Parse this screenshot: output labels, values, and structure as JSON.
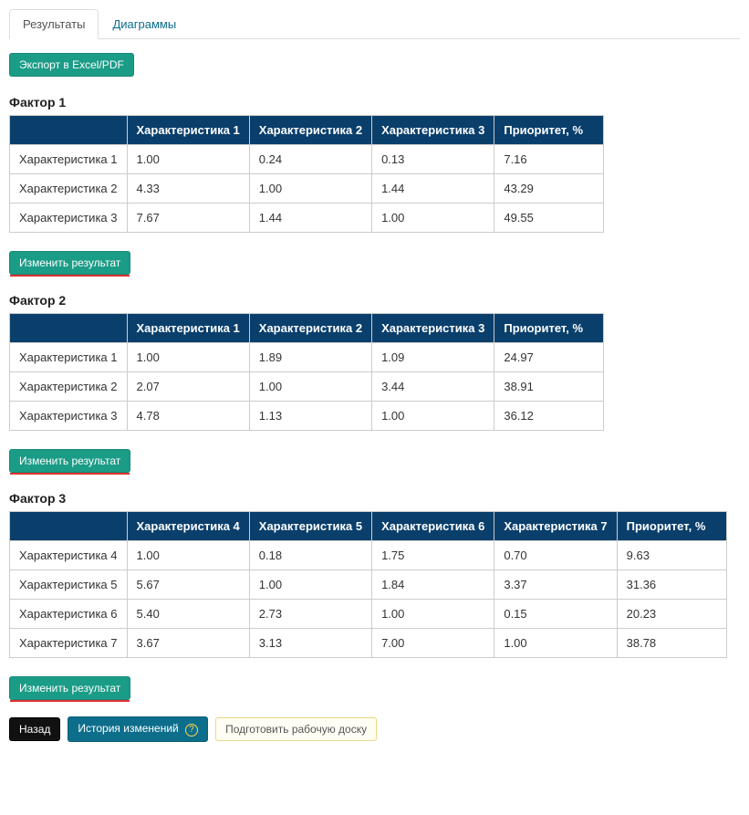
{
  "tabs": {
    "results": "Результаты",
    "charts": "Диаграммы"
  },
  "buttons": {
    "export": "Экспорт в Excel/PDF",
    "edit_result": "Изменить результат",
    "back": "Назад",
    "history": "История изменений",
    "prepare_board": "Подготовить рабочую доску"
  },
  "factors": [
    {
      "title": "Фактор 1",
      "row_labels": [
        "Характеристика 1",
        "Характеристика 2",
        "Характеристика 3"
      ],
      "col_labels": [
        "Характеристика 1",
        "Характеристика 2",
        "Характеристика 3",
        "Приоритет, %"
      ],
      "rows": [
        [
          "1.00",
          "0.24",
          "0.13",
          "7.16"
        ],
        [
          "4.33",
          "1.00",
          "1.44",
          "43.29"
        ],
        [
          "7.67",
          "1.44",
          "1.00",
          "49.55"
        ]
      ]
    },
    {
      "title": "Фактор 2",
      "row_labels": [
        "Характеристика 1",
        "Характеристика 2",
        "Характеристика 3"
      ],
      "col_labels": [
        "Характеристика 1",
        "Характеристика 2",
        "Характеристика 3",
        "Приоритет, %"
      ],
      "rows": [
        [
          "1.00",
          "1.89",
          "1.09",
          "24.97"
        ],
        [
          "2.07",
          "1.00",
          "3.44",
          "38.91"
        ],
        [
          "4.78",
          "1.13",
          "1.00",
          "36.12"
        ]
      ]
    },
    {
      "title": "Фактор 3",
      "row_labels": [
        "Характеристика 4",
        "Характеристика 5",
        "Характеристика 6",
        "Характеристика 7"
      ],
      "col_labels": [
        "Характеристика 4",
        "Характеристика 5",
        "Характеристика 6",
        "Характеристика 7",
        "Приоритет, %"
      ],
      "rows": [
        [
          "1.00",
          "0.18",
          "1.75",
          "0.70",
          "9.63"
        ],
        [
          "5.67",
          "1.00",
          "1.84",
          "3.37",
          "31.36"
        ],
        [
          "5.40",
          "2.73",
          "1.00",
          "0.15",
          "20.23"
        ],
        [
          "3.67",
          "3.13",
          "7.00",
          "1.00",
          "38.78"
        ]
      ]
    }
  ],
  "colors": {
    "header_bg": "#0a3f6c",
    "teal": "#1a9c87",
    "underline": "#e03030",
    "link": "#0d6e8c"
  }
}
